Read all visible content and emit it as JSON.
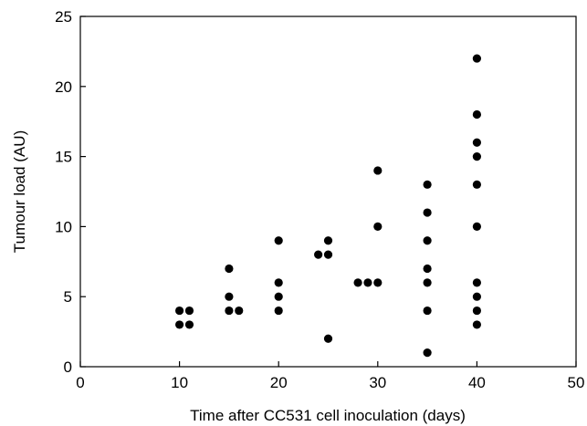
{
  "chart_data": {
    "type": "scatter",
    "title": "",
    "xlabel": "Time after CC531 cell inoculation (days)",
    "ylabel": "Tumour load (AU)",
    "xlim": [
      0,
      50
    ],
    "ylim": [
      0,
      25
    ],
    "xticks": [
      "0",
      "10",
      "20",
      "30",
      "40",
      "50"
    ],
    "yticks": [
      "0",
      "5",
      "10",
      "15",
      "20",
      "25"
    ],
    "grid": false,
    "legend": "none",
    "marker_color": "#000000",
    "points": [
      {
        "x": 10,
        "y": 3
      },
      {
        "x": 10,
        "y": 4
      },
      {
        "x": 11,
        "y": 3
      },
      {
        "x": 11,
        "y": 4
      },
      {
        "x": 15,
        "y": 4
      },
      {
        "x": 15,
        "y": 5
      },
      {
        "x": 15,
        "y": 7
      },
      {
        "x": 16,
        "y": 4
      },
      {
        "x": 20,
        "y": 4
      },
      {
        "x": 20,
        "y": 5
      },
      {
        "x": 20,
        "y": 6
      },
      {
        "x": 20,
        "y": 9
      },
      {
        "x": 24,
        "y": 8
      },
      {
        "x": 25,
        "y": 2
      },
      {
        "x": 25,
        "y": 8
      },
      {
        "x": 25,
        "y": 9
      },
      {
        "x": 28,
        "y": 6
      },
      {
        "x": 29,
        "y": 6
      },
      {
        "x": 30,
        "y": 6
      },
      {
        "x": 30,
        "y": 10
      },
      {
        "x": 30,
        "y": 14
      },
      {
        "x": 35,
        "y": 1
      },
      {
        "x": 35,
        "y": 4
      },
      {
        "x": 35,
        "y": 6
      },
      {
        "x": 35,
        "y": 7
      },
      {
        "x": 35,
        "y": 9
      },
      {
        "x": 35,
        "y": 11
      },
      {
        "x": 35,
        "y": 13
      },
      {
        "x": 40,
        "y": 3
      },
      {
        "x": 40,
        "y": 4
      },
      {
        "x": 40,
        "y": 5
      },
      {
        "x": 40,
        "y": 6
      },
      {
        "x": 40,
        "y": 10
      },
      {
        "x": 40,
        "y": 13
      },
      {
        "x": 40,
        "y": 15
      },
      {
        "x": 40,
        "y": 16
      },
      {
        "x": 40,
        "y": 18
      },
      {
        "x": 40,
        "y": 22
      }
    ]
  }
}
